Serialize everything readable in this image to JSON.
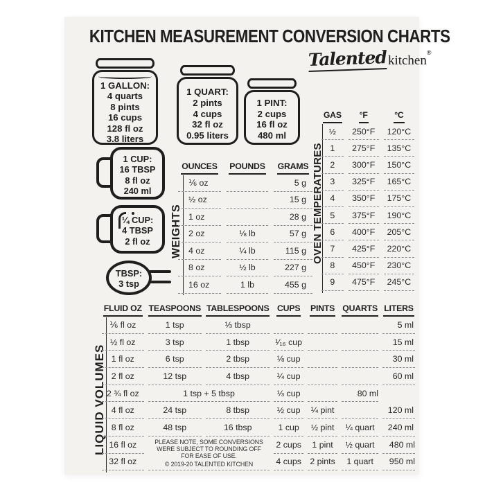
{
  "colors": {
    "page": "#ffffff",
    "paper": "#f3f2ef",
    "ink": "#1e1e1c",
    "dash": "#8a8a8a"
  },
  "title": "KITCHEN MEASUREMENT CONVERSION CHARTS",
  "brand": {
    "script": "Talented",
    "serif": "kitchen",
    "reg": "®"
  },
  "jars": [
    {
      "name": "1 gallon jar",
      "lines": [
        "1 GALLON:",
        "4 quarts",
        "8 pints",
        "16 cups",
        "128 fl oz",
        "3.8 liters"
      ]
    },
    {
      "name": "1 quart jar",
      "lines": [
        "1 QUART:",
        "2 pints",
        "4 cups",
        "32 fl oz",
        "0.95 liters"
      ]
    },
    {
      "name": "1 pint jar",
      "lines": [
        "1 PINT:",
        "2 cups",
        "16 fl oz",
        "480 ml"
      ]
    }
  ],
  "cups": [
    {
      "name": "1 cup mug",
      "lines": [
        "1 CUP:",
        "16 TBSP",
        "8 fl oz",
        "240 ml"
      ]
    },
    {
      "name": "quarter cup mug",
      "lines": [
        "¼ CUP:",
        "4 TBSP",
        "2 fl oz"
      ]
    },
    {
      "name": "tablespoon spoon",
      "lines": [
        "TBSP:",
        "3 tsp"
      ]
    }
  ],
  "chart_data": [
    {
      "id": "weights",
      "type": "table",
      "label": "WEIGHTS",
      "headers": [
        "OUNCES",
        "POUNDS",
        "GRAMS"
      ],
      "rows": [
        [
          "⅙ oz",
          "",
          "5 g"
        ],
        [
          "½ oz",
          "",
          "15 g"
        ],
        [
          "1 oz",
          "",
          "28 g"
        ],
        [
          "2 oz",
          "⅛ lb",
          "57 g"
        ],
        [
          "4 oz",
          "¼ lb",
          "115 g"
        ],
        [
          "8 oz",
          "½ lb",
          "227 g"
        ],
        [
          "16 oz",
          "1 lb",
          "455 g"
        ]
      ]
    },
    {
      "id": "oven-temperatures",
      "type": "table",
      "label": "OVEN TEMPERATURES",
      "headers": [
        "GAS",
        "°F",
        "°C"
      ],
      "rows": [
        [
          "½",
          "250°F",
          "120°C"
        ],
        [
          "1",
          "275°F",
          "135°C"
        ],
        [
          "2",
          "300°F",
          "150°C"
        ],
        [
          "3",
          "325°F",
          "165°C"
        ],
        [
          "4",
          "350°F",
          "175°C"
        ],
        [
          "5",
          "375°F",
          "190°C"
        ],
        [
          "6",
          "400°F",
          "205°C"
        ],
        [
          "7",
          "425°F",
          "220°C"
        ],
        [
          "8",
          "450°F",
          "230°C"
        ],
        [
          "9",
          "475°F",
          "245°C"
        ]
      ]
    },
    {
      "id": "liquid-volumes",
      "type": "table",
      "label": "LIQUID VOLUMES",
      "headers": [
        "FLUID OZ",
        "TEASPOONS",
        "TABLESPOONS",
        "CUPS",
        "PINTS",
        "QUARTS",
        "LITERS"
      ],
      "rows": [
        [
          "⅙ fl oz",
          "1 tsp",
          "⅓ tbsp",
          "",
          "",
          "",
          "5 ml"
        ],
        [
          "½ fl oz",
          "3 tsp",
          "1 tbsp",
          "¹⁄₁₆ cup",
          "",
          "",
          "15 ml"
        ],
        [
          "1 fl oz",
          "6 tsp",
          "2 tbsp",
          "⅛ cup",
          "",
          "",
          "30 ml"
        ],
        [
          "2 fl oz",
          "12 tsp",
          "4 tbsp",
          "¼ cup",
          "",
          "",
          "60 ml"
        ],
        [
          "2 ¾ fl oz",
          {
            "text": "1 tsp + 5 tbsp",
            "colspan": 2
          },
          "⅓ cup",
          "",
          {
            "text": "80 ml",
            "cls": "r"
          }
        ],
        [
          "4 fl oz",
          "24 tsp",
          "8 tbsp",
          "½ cup",
          "¼ pint",
          "",
          "120 ml"
        ],
        [
          "8 fl oz",
          "48 tsp",
          "16 tbsp",
          "1 cup",
          "½ pint",
          "¼ quart",
          "240 ml"
        ],
        [
          "16 fl oz",
          {
            "lines": [
              "PLEASE NOTE, SOME CONVERSIONS",
              "WERE SUBJECT TO ROUNDING OFF",
              "FOR EASE OF USE.",
              "© 2019-20 TALENTED KITCHEN"
            ],
            "colspan": 2,
            "rowspan": 2,
            "cls": "note"
          },
          "2 cups",
          "1 pint",
          "½ quart",
          {
            "text": "480 ml",
            "cls": "r"
          }
        ],
        [
          "32 fl oz",
          "4 cups",
          "2 pints",
          "1 quart",
          {
            "text": "950 ml",
            "cls": "r"
          }
        ]
      ]
    }
  ]
}
